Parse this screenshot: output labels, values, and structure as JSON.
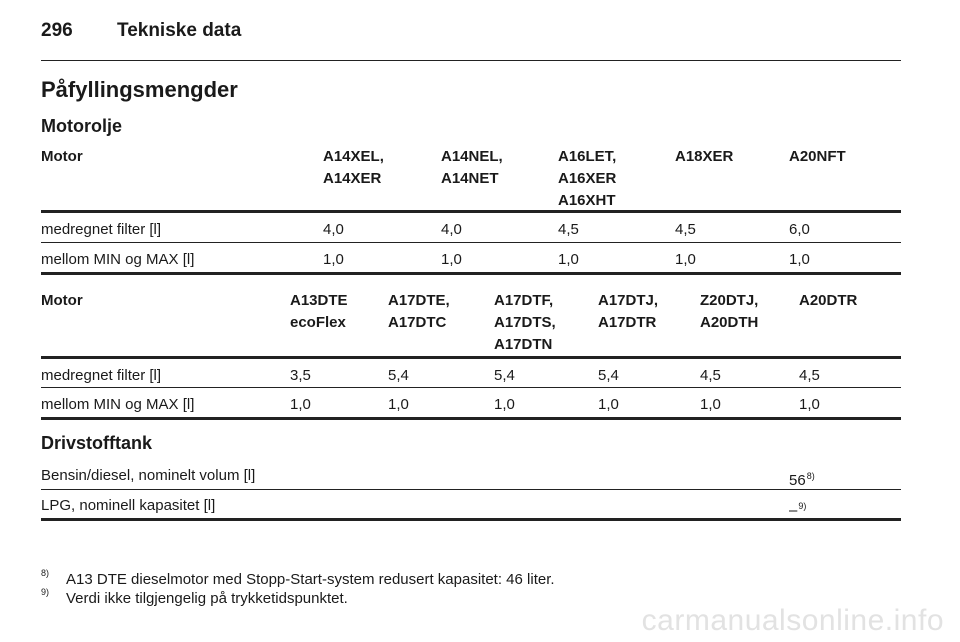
{
  "header": {
    "page_number": "296",
    "title": "Tekniske data"
  },
  "section_title": "Påfyllingsmengder",
  "oil": {
    "title": "Motorolje",
    "table1": {
      "motor_label": "Motor",
      "columns": [
        [
          "A14XEL,",
          "A14XER"
        ],
        [
          "A14NEL,",
          "A14NET"
        ],
        [
          "A16LET,",
          "A16XER",
          "A16XHT"
        ],
        [
          "A18XER"
        ],
        [
          "A20NFT"
        ]
      ],
      "rows": [
        {
          "label": "medregnet filter [l]",
          "values": [
            "4,0",
            "4,0",
            "4,5",
            "4,5",
            "6,0"
          ]
        },
        {
          "label": "mellom MIN og MAX [l]",
          "values": [
            "1,0",
            "1,0",
            "1,0",
            "1,0",
            "1,0"
          ]
        }
      ]
    },
    "table2": {
      "motor_label": "Motor",
      "columns": [
        [
          "A13DTE",
          "ecoFlex"
        ],
        [
          "A17DTE,",
          "A17DTC"
        ],
        [
          "A17DTF,",
          "A17DTS,",
          "A17DTN"
        ],
        [
          "A17DTJ,",
          "A17DTR"
        ],
        [
          "Z20DTJ,",
          "A20DTH"
        ],
        [
          "A20DTR"
        ]
      ],
      "rows": [
        {
          "label": "medregnet filter [l]",
          "values": [
            "3,5",
            "5,4",
            "5,4",
            "5,4",
            "4,5",
            "4,5"
          ]
        },
        {
          "label": "mellom MIN og MAX [l]",
          "values": [
            "1,0",
            "1,0",
            "1,0",
            "1,0",
            "1,0",
            "1,0"
          ]
        }
      ]
    }
  },
  "fuel": {
    "title": "Drivstofftank",
    "rows": [
      {
        "label": "Bensin/diesel, nominelt volum [l]",
        "value": "56",
        "sup": "8)"
      },
      {
        "label": "LPG, nominell kapasitet [l]",
        "value": "–",
        "sup": "9)"
      }
    ]
  },
  "footnotes": [
    {
      "mark": "8)",
      "text": "A13 DTE dieselmotor med Stopp-Start-system redusert kapasitet: 46 liter."
    },
    {
      "mark": "9)",
      "text": "Verdi ikke tilgjengelig på trykketidspunktet."
    }
  ],
  "watermark": "carmanualsonline.info"
}
